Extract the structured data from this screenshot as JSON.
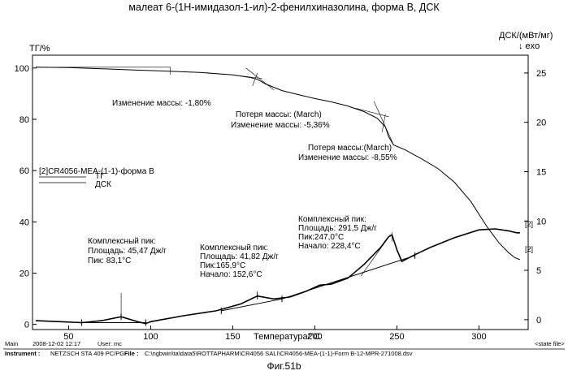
{
  "title": "малеат 6-(1Н-имидазол-1-ил)-2-фенилхиназолина, форма В, ДСК",
  "caption": "Фиг.51b",
  "chart_data": {
    "type": "line",
    "xlabel": "Температура/°C",
    "xlim": [
      28,
      330
    ],
    "x_ticks": [
      "50",
      "100",
      "150",
      "200",
      "250",
      "300"
    ],
    "y_left_label": "ТГ/%",
    "y_left_lim": [
      -2,
      105
    ],
    "y_left_ticks": [
      "0",
      "20",
      "40",
      "60",
      "80",
      "100"
    ],
    "y_right_label": "ДСК/(мВт/мг)",
    "y_right_arrow": "↓ exo",
    "y_right_lim": [
      -1.0,
      26.8
    ],
    "y_right_ticks": [
      "0",
      "5",
      "10",
      "15",
      "20",
      "25"
    ],
    "grid": false,
    "legend": {
      "header": "[2]CR4056-MEA-(1-1)-форма B",
      "entries": [
        "ТГ",
        "ДСК"
      ],
      "placement": "center-left"
    },
    "series": [
      {
        "name": "ТГ",
        "axis": "left",
        "x": [
          30,
          50,
          70,
          90,
          110,
          130,
          150,
          160,
          165,
          170,
          180,
          190,
          200,
          210,
          220,
          230,
          238,
          243,
          245,
          248,
          255,
          265,
          275,
          285,
          295,
          305,
          312,
          318,
          322,
          325
        ],
        "y": [
          100.3,
          100.2,
          99.7,
          99.2,
          98.8,
          98.3,
          97.3,
          96.4,
          95.6,
          93.8,
          91.2,
          89.6,
          88.1,
          86.8,
          85.2,
          83.0,
          80.4,
          77.0,
          73.2,
          70.0,
          68.1,
          64.6,
          60.8,
          55.5,
          48.0,
          38.0,
          32.0,
          28.0,
          26.0,
          25.3
        ]
      },
      {
        "name": "ДСК",
        "axis": "right",
        "x": [
          30,
          45,
          58,
          70,
          82,
          92,
          97,
          100,
          120,
          140,
          155,
          165,
          175,
          185,
          195,
          203,
          210,
          220,
          230,
          240,
          245,
          247,
          250,
          253,
          260,
          270,
          285,
          300,
          310,
          318,
          323,
          325
        ],
        "y": [
          -0.1,
          -0.2,
          -0.3,
          -0.1,
          0.3,
          -0.2,
          -0.4,
          -0.2,
          0.4,
          0.9,
          1.6,
          2.4,
          2.1,
          2.3,
          2.9,
          3.5,
          3.6,
          4.2,
          5.6,
          7.3,
          8.4,
          8.6,
          7.1,
          5.9,
          6.5,
          7.3,
          8.3,
          9.1,
          9.2,
          9.0,
          8.8,
          8.8
        ]
      }
    ],
    "annotations": [
      {
        "id": "tg1",
        "lines": [
          "Изменение массы: -1,80%"
        ]
      },
      {
        "id": "tg2",
        "lines": [
          "Потеря массы: (March)",
          "Изменение массы: -5,36%"
        ]
      },
      {
        "id": "tg3",
        "lines": [
          "Потеря массы:(March)",
          "Изменение массы: -8,55%"
        ]
      },
      {
        "id": "dsc1",
        "lines": [
          "Комплексный пик:",
          "Площадь: 45,47 Дж/г",
          "Пик: 83,1°C"
        ]
      },
      {
        "id": "dsc2",
        "lines": [
          "Комплексный пик:",
          "Площадь: 41,82 Дж/г",
          "Пик:165,9°C",
          "Начало: 152,6°C"
        ]
      },
      {
        "id": "dsc3",
        "lines": [
          "Комплексный пик:",
          "Площадь: 291,5 Дж/г",
          "Пик:247,0°C",
          "Начало: 228,4°C"
        ]
      }
    ],
    "curve_tags": [
      "[2]",
      "[2]"
    ],
    "footer": {
      "main_label": "Main",
      "datetime": "2008-12-02 12:17",
      "user": "User: mc",
      "state_file": "<state file>",
      "instrument_label": "Instrument :",
      "instrument": "NETZSCH STA 409 PC/PG",
      "file_label": "File :",
      "file": "C:\\ngbwin\\ta\\data5\\ROTTAPHARM\\CR4056 SALI\\CR4056-MEA-(1-1)-Form B-12-MPR-271008.dsv"
    }
  }
}
